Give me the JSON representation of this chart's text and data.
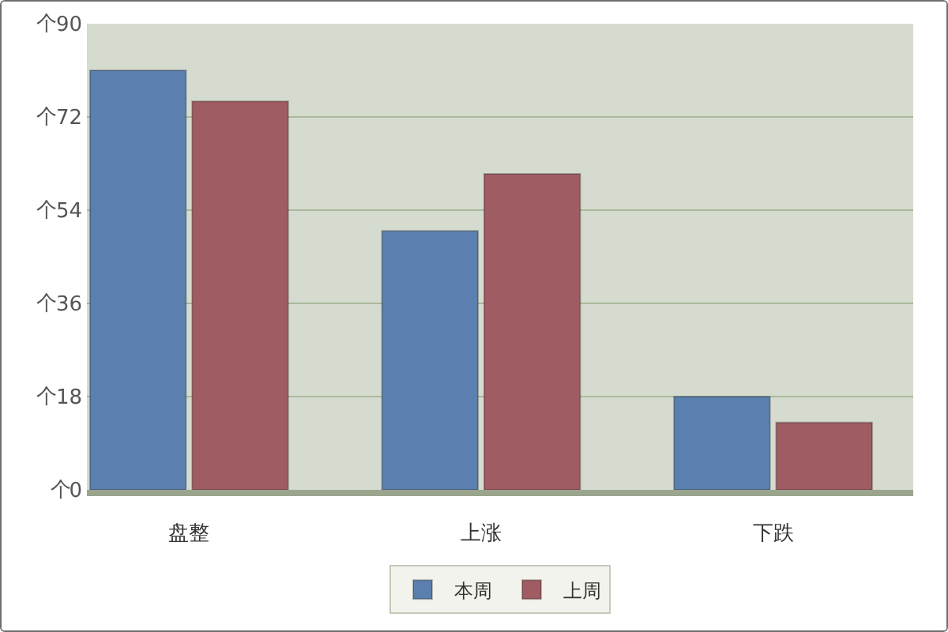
{
  "chart_data": {
    "type": "bar",
    "categories": [
      "盘整",
      "上涨",
      "下跌"
    ],
    "series": [
      {
        "name": "本周",
        "color": "#5b7fae",
        "values": [
          81,
          50,
          18
        ]
      },
      {
        "name": "上周",
        "color": "#a05c63",
        "values": [
          75,
          61,
          13
        ]
      }
    ],
    "ylim": [
      0,
      90
    ],
    "yticks": [
      0,
      18,
      36,
      54,
      72,
      90
    ],
    "annotations": [
      "个",
      "个",
      "个",
      "个",
      "个",
      "个"
    ],
    "grid": "y",
    "legend": "bottom"
  }
}
